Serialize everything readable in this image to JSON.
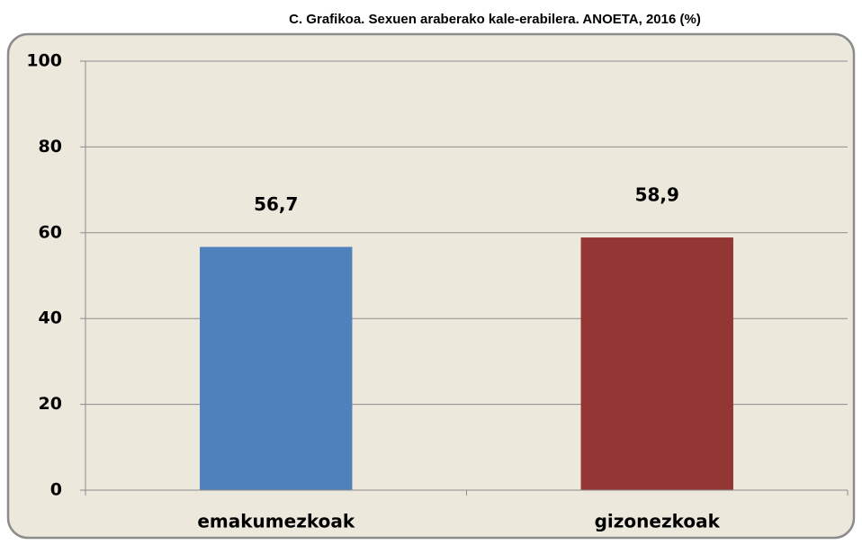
{
  "chart_data": {
    "type": "bar",
    "title": "C. Grafikoa. Sexuen araberako kale-erabilera. ANOETA, 2016 (%)",
    "categories": [
      "emakumezkoak",
      "gizonezkoak"
    ],
    "values": [
      56.7,
      58.9
    ],
    "value_labels": [
      "56,7",
      "58,9"
    ],
    "colors": [
      "#4f81bd",
      "#943634"
    ],
    "ylim": [
      0,
      100
    ],
    "yticks": [
      0,
      20,
      40,
      60,
      80,
      100
    ],
    "grid": true
  }
}
